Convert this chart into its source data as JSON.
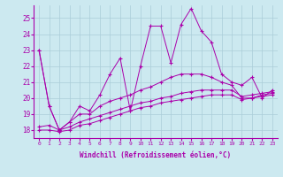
{
  "xlabel": "Windchill (Refroidissement éolien,°C)",
  "xlim": [
    -0.5,
    23.5
  ],
  "ylim": [
    17.5,
    25.8
  ],
  "xticks": [
    0,
    1,
    2,
    3,
    4,
    5,
    6,
    7,
    8,
    9,
    10,
    11,
    12,
    13,
    14,
    15,
    16,
    17,
    18,
    19,
    20,
    21,
    22,
    23
  ],
  "yticks": [
    18,
    19,
    20,
    21,
    22,
    23,
    24,
    25
  ],
  "bg_color": "#cce9f0",
  "grid_color": "#aacdd8",
  "line_color": "#aa00aa",
  "line1": [
    23,
    19.5,
    18,
    18.5,
    19.5,
    19.2,
    20.2,
    21.5,
    22.5,
    19.2,
    22.0,
    24.5,
    24.5,
    22.2,
    24.6,
    25.6,
    24.2,
    23.5,
    21.5,
    21.0,
    20.8,
    21.3,
    20.0,
    20.5
  ],
  "line2": [
    23,
    19.5,
    18,
    18.5,
    19.0,
    19.0,
    19.5,
    19.8,
    20.0,
    20.2,
    20.5,
    20.7,
    21.0,
    21.3,
    21.5,
    21.5,
    21.5,
    21.3,
    21.0,
    20.8,
    20.0,
    20.0,
    20.2,
    20.3
  ],
  "line3": [
    18.2,
    18.3,
    18.0,
    18.2,
    18.5,
    18.7,
    18.9,
    19.1,
    19.3,
    19.5,
    19.7,
    19.8,
    20.0,
    20.1,
    20.3,
    20.4,
    20.5,
    20.5,
    20.5,
    20.5,
    20.1,
    20.2,
    20.3,
    20.4
  ],
  "line4": [
    18.0,
    18.0,
    17.9,
    18.0,
    18.3,
    18.4,
    18.6,
    18.8,
    19.0,
    19.2,
    19.4,
    19.5,
    19.7,
    19.8,
    19.9,
    20.0,
    20.1,
    20.2,
    20.2,
    20.2,
    19.9,
    20.0,
    20.1,
    20.2
  ]
}
